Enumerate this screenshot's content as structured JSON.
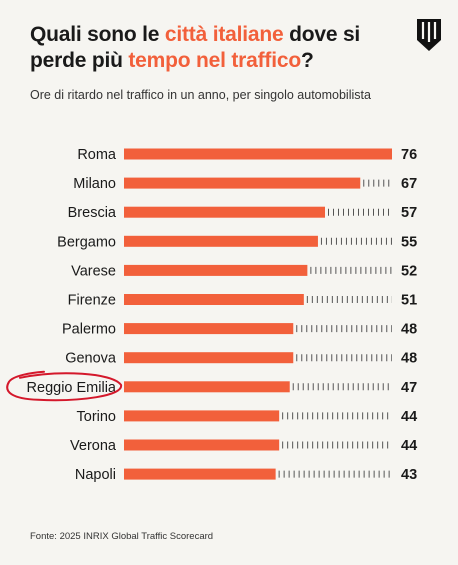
{
  "header": {
    "title_part1": "Quali sono le ",
    "title_highlight1": "città italiane",
    "title_part2": " dove si perde più ",
    "title_highlight2": "tempo nel traffico",
    "title_part3": "?",
    "subtitle": "Ore di ritardo nel traffico in un anno, per singolo automobilista",
    "logo_icon": "brand-logo-icon"
  },
  "footer": {
    "source": "Fonte: 2025 INRIX Global Traffic Scorecard"
  },
  "colors": {
    "accent": "#f2603b",
    "text": "#1a1a1a",
    "background": "#f6f5f1",
    "annotation_circle": "#d4182b"
  },
  "chart_data": {
    "type": "bar",
    "orientation": "horizontal",
    "categories": [
      "Roma",
      "Milano",
      "Brescia",
      "Bergamo",
      "Varese",
      "Firenze",
      "Palermo",
      "Genova",
      "Reggio Emilia",
      "Torino",
      "Verona",
      "Napoli"
    ],
    "values": [
      76,
      67,
      57,
      55,
      52,
      51,
      48,
      48,
      47,
      44,
      44,
      43
    ],
    "xlim": [
      0,
      76
    ],
    "grid": false,
    "highlighted_category": "Reggio Emilia"
  }
}
